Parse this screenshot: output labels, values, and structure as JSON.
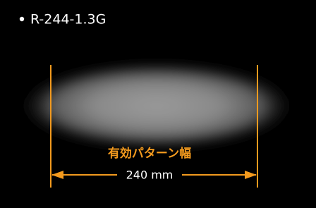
{
  "label": "R-244-1.3G",
  "annotation": {
    "title": "有効パターン幅",
    "width": "240 mm"
  }
}
